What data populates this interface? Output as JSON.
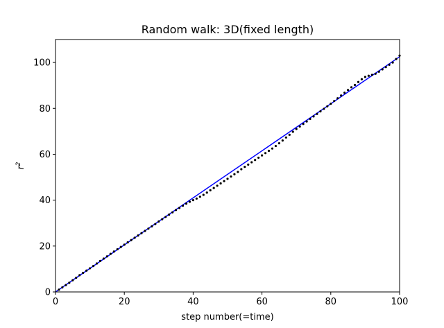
{
  "chart_data": {
    "type": "scatter",
    "title": "Random walk: 3D(fixed length)",
    "xlabel": "step number(=time)",
    "ylabel": {
      "base": "r",
      "superscript": "2"
    },
    "xlim": [
      0,
      100
    ],
    "ylim": [
      0,
      110
    ],
    "xticks": [
      0,
      20,
      40,
      60,
      80,
      100
    ],
    "yticks": [
      0,
      20,
      40,
      60,
      80,
      100
    ],
    "grid": false,
    "colors": {
      "points": "#000000",
      "fit_line": "#0000ff"
    },
    "series": [
      {
        "kind": "points",
        "x": [
          1,
          2,
          3,
          4,
          5,
          6,
          7,
          8,
          9,
          10,
          11,
          12,
          13,
          14,
          15,
          16,
          17,
          18,
          19,
          20,
          21,
          22,
          23,
          24,
          25,
          26,
          27,
          28,
          29,
          30,
          31,
          32,
          33,
          34,
          35,
          36,
          37,
          38,
          39,
          40,
          41,
          42,
          43,
          44,
          45,
          46,
          47,
          48,
          49,
          50,
          51,
          52,
          53,
          54,
          55,
          56,
          57,
          58,
          59,
          60,
          61,
          62,
          63,
          64,
          65,
          66,
          67,
          68,
          69,
          70,
          71,
          72,
          73,
          74,
          75,
          76,
          77,
          78,
          79,
          80,
          81,
          82,
          83,
          84,
          85,
          86,
          87,
          88,
          89,
          90,
          91,
          92,
          93,
          94,
          95,
          96,
          97,
          98,
          99,
          100
        ],
        "y": [
          1.0,
          2.0,
          3.0,
          4.0,
          5.1,
          6.2,
          7.3,
          8.3,
          9.3,
          10.3,
          11.3,
          12.4,
          13.5,
          14.5,
          15.5,
          16.6,
          17.6,
          18.6,
          19.6,
          20.6,
          21.6,
          22.6,
          23.6,
          24.6,
          25.6,
          26.6,
          27.6,
          28.6,
          29.6,
          30.7,
          31.7,
          32.7,
          33.7,
          34.7,
          35.7,
          36.6,
          37.6,
          38.5,
          39.3,
          40.0,
          40.7,
          41.5,
          42.3,
          43.3,
          44.3,
          45.3,
          46.3,
          47.3,
          48.3,
          49.3,
          50.3,
          51.3,
          52.3,
          53.5,
          54.5,
          55.5,
          56.5,
          57.5,
          58.5,
          59.5,
          60.5,
          61.5,
          62.5,
          63.6,
          64.8,
          66.0,
          67.3,
          68.5,
          69.8,
          71.0,
          72.1,
          73.2,
          74.3,
          75.4,
          76.5,
          77.6,
          78.7,
          79.8,
          80.9,
          82.0,
          83.2,
          84.4,
          85.6,
          86.8,
          88.0,
          89.2,
          90.2,
          91.5,
          92.7,
          93.7,
          94.2,
          94.6,
          95.1,
          96.0,
          97.0,
          98.0,
          99.0,
          100.0,
          101.5,
          103.0
        ]
      },
      {
        "kind": "fit_line",
        "x": [
          0,
          100
        ],
        "y": [
          0,
          102.5
        ]
      }
    ]
  }
}
